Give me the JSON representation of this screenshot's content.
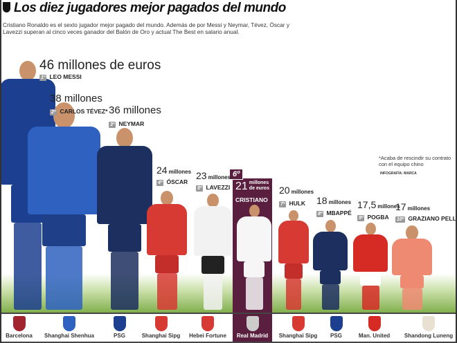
{
  "title": "Los diez jugadores mejor pagados del mundo",
  "intro": "Cristiano Ronaldo es el sexto jugador mejor pagado del mundo. Además de por Messi y Neymar, Tévez, Óscar y Lavezzi superan al cinco veces ganador del Balón de Oro y actual The Best en salario anual.",
  "note": "*Acaba de rescindir su contrato con el equipo chino",
  "credit": "INFOGRAFÍA: MARCA",
  "highlight_color": "#5a1f3f",
  "players": [
    {
      "rank": "1º",
      "name": "LEO MESSI",
      "value": "46 millones de euros",
      "club": "Barcelona",
      "salary_m_eur": 46
    },
    {
      "rank": "2º",
      "name": "CARLOS TÉVEZ*",
      "value": "38 millones",
      "club": "Shanghai Shenhua",
      "salary_m_eur": 38
    },
    {
      "rank": "3º",
      "name": "NEYMAR",
      "value": "36 millones",
      "club": "PSG",
      "salary_m_eur": 36
    },
    {
      "rank": "4º",
      "name": "ÓSCAR",
      "value": "24",
      "unit": "millones",
      "club": "Shanghai Sipg",
      "salary_m_eur": 24
    },
    {
      "rank": "5º",
      "name": "LAVEZZI",
      "value": "23",
      "unit": "millones",
      "club": "Hebei Fortune",
      "salary_m_eur": 23
    },
    {
      "rank": "6º",
      "name": "CRISTIANO",
      "value": "21",
      "unit": "millones de euros",
      "club": "Real Madrid",
      "salary_m_eur": 21
    },
    {
      "rank": "7º",
      "name": "HULK",
      "value": "20",
      "unit": "millones",
      "club": "Shanghai Sipg",
      "salary_m_eur": 20
    },
    {
      "rank": "8º",
      "name": "MBAPPÉ",
      "value": "18",
      "unit": "millones",
      "club": "PSG",
      "salary_m_eur": 18
    },
    {
      "rank": "9º",
      "name": "POGBA",
      "value": "17,5",
      "unit": "millones",
      "club": "Man. United",
      "salary_m_eur": 17.5
    },
    {
      "rank": "10º",
      "name": "GRAZIANO PELLÉ",
      "value": "17",
      "unit": "millones",
      "club": "Shandong Luneng",
      "salary_m_eur": 17
    }
  ]
}
